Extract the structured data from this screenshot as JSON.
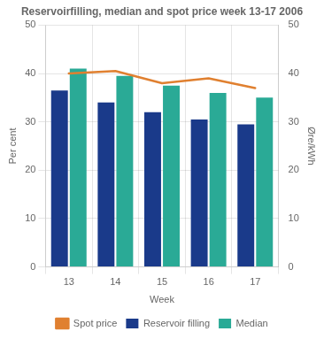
{
  "chart_data": {
    "type": "bar",
    "title": "Reservoirfilling, median and spot price week 13-17 2006",
    "xlabel": "Week",
    "ylabel": "Per cent",
    "y2label": "Øre/kWh",
    "categories": [
      "13",
      "14",
      "15",
      "16",
      "17"
    ],
    "series": [
      {
        "name": "Reservoir filling",
        "type": "bar",
        "color": "#1a3a8a",
        "values": [
          36.5,
          34.0,
          32.0,
          30.5,
          29.5
        ]
      },
      {
        "name": "Median",
        "type": "bar",
        "color": "#2aaa96",
        "values": [
          41.0,
          39.5,
          37.5,
          36.0,
          35.0
        ]
      },
      {
        "name": "Spot price",
        "type": "line",
        "axis": "y2",
        "color": "#e08030",
        "values": [
          40.0,
          40.5,
          38.0,
          39.0,
          37.0
        ]
      }
    ],
    "ylim": [
      0,
      50
    ],
    "yticks": [
      0,
      10,
      20,
      30,
      40,
      50
    ],
    "y2lim": [
      0,
      50
    ],
    "y2ticks": [
      0,
      10,
      20,
      30,
      40,
      50
    ],
    "grid": true,
    "legend": "bottom"
  }
}
